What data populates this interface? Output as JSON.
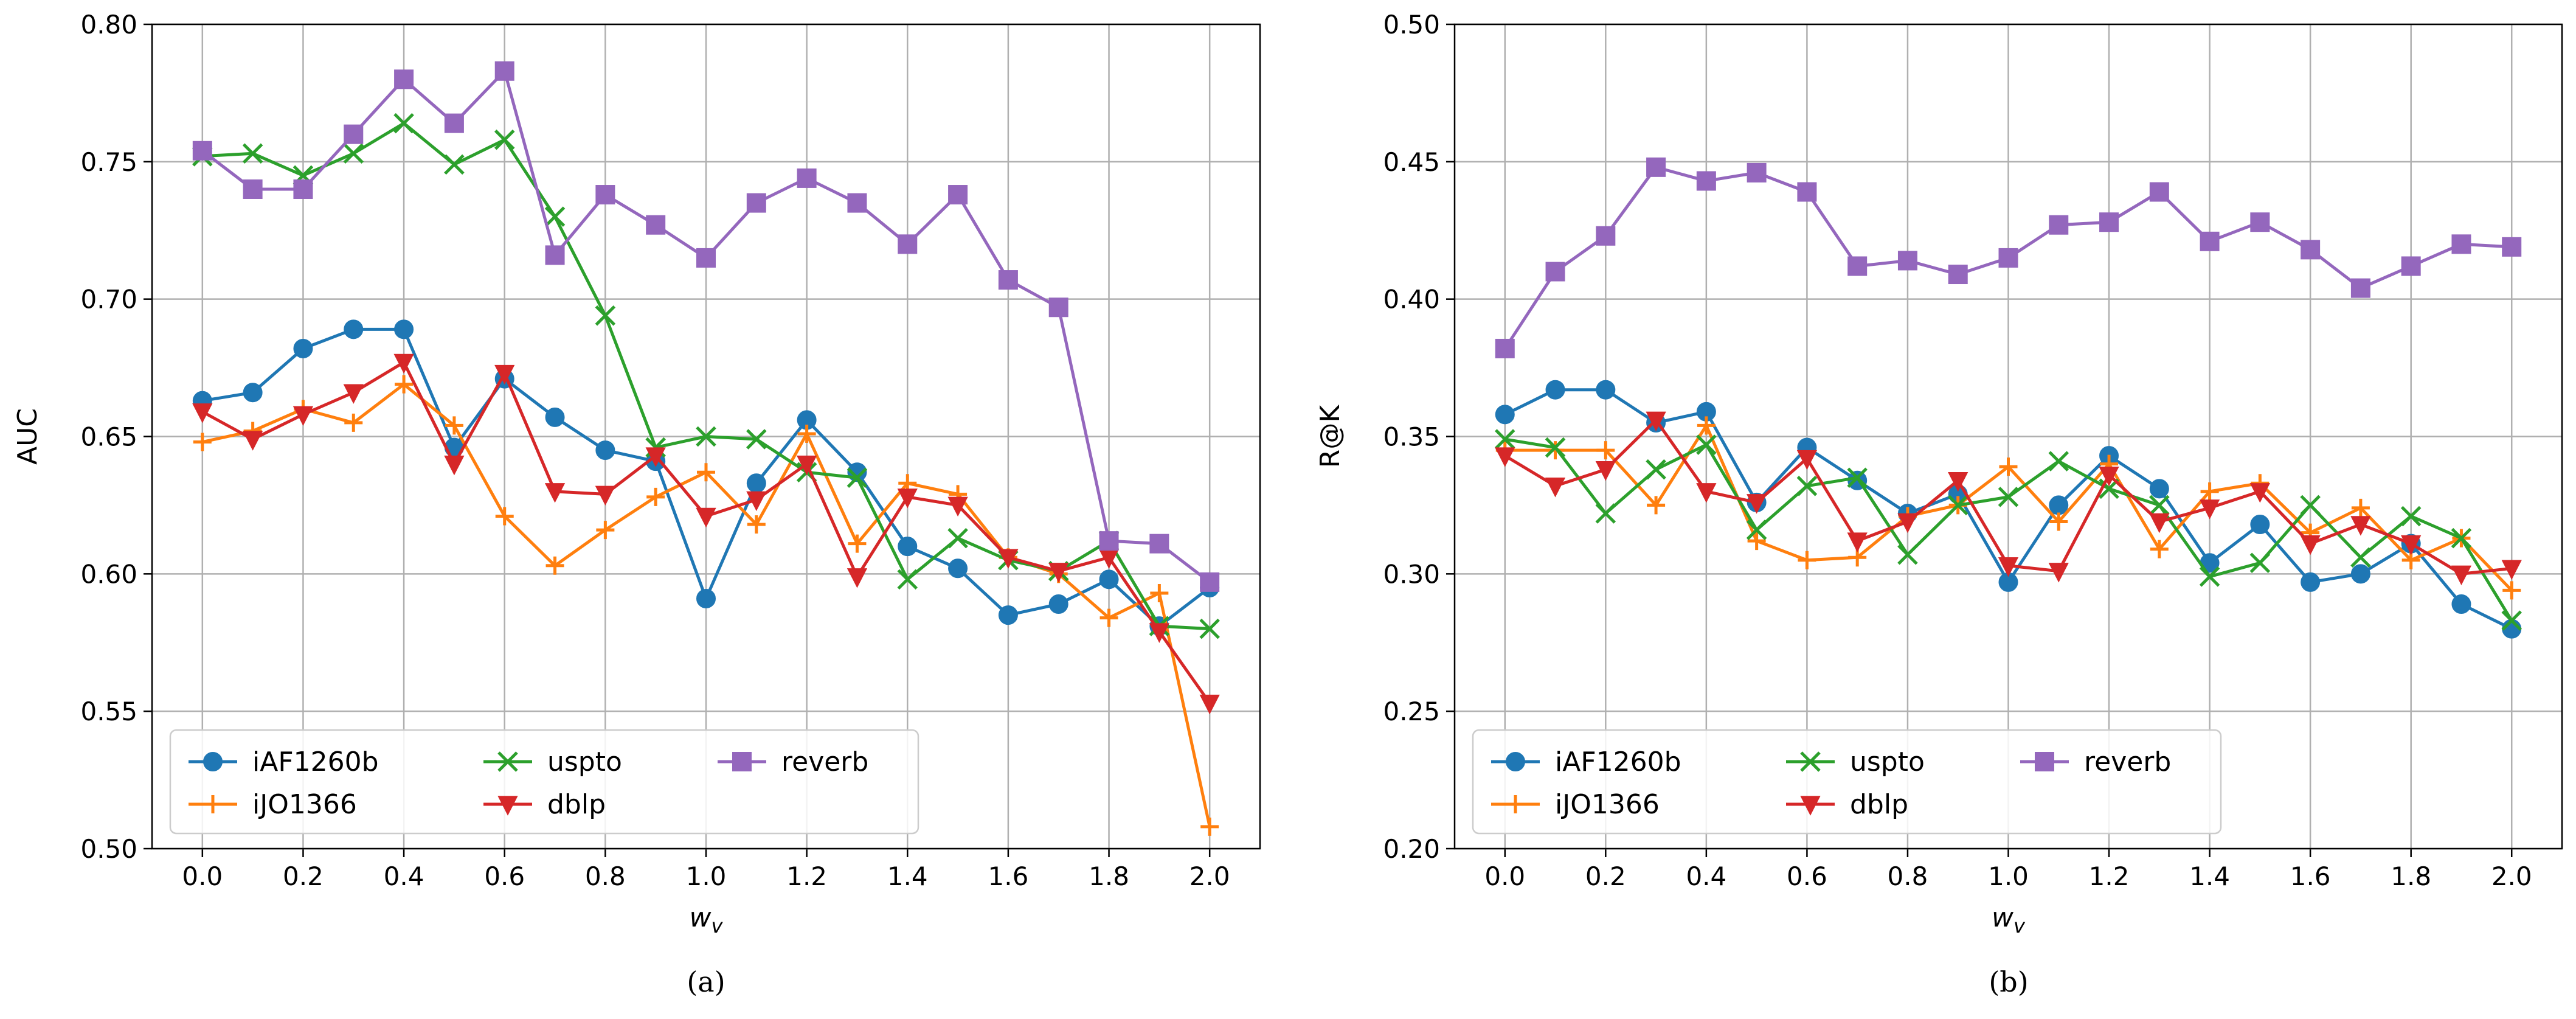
{
  "colors": {
    "iAF1260b": "#1f77b4",
    "iJO1366": "#ff7f0e",
    "uspto": "#2ca02c",
    "dblp": "#d62728",
    "reverb": "#9467bd"
  },
  "chart_data": [
    {
      "type": "line",
      "panel": "(a)",
      "xlabel": "w_v",
      "ylabel": "AUC",
      "xlim": [
        -0.1,
        2.1
      ],
      "ylim": [
        0.5,
        0.8
      ],
      "xticks": [
        0.0,
        0.2,
        0.4,
        0.6,
        0.8,
        1.0,
        1.2,
        1.4,
        1.6,
        1.8,
        2.0
      ],
      "xtick_labels": [
        "0.0",
        "0.2",
        "0.4",
        "0.6",
        "0.8",
        "1.0",
        "1.2",
        "1.4",
        "1.6",
        "1.8",
        "2.0"
      ],
      "yticks": [
        0.5,
        0.55,
        0.6,
        0.65,
        0.7,
        0.75,
        0.8
      ],
      "ytick_labels": [
        "0.50",
        "0.55",
        "0.60",
        "0.65",
        "0.70",
        "0.75",
        "0.80"
      ],
      "grid": true,
      "legend": "lower-left, 3 columns",
      "x": [
        0.0,
        0.1,
        0.2,
        0.3,
        0.4,
        0.5,
        0.6,
        0.7,
        0.8,
        0.9,
        1.0,
        1.1,
        1.2,
        1.3,
        1.4,
        1.5,
        1.6,
        1.7,
        1.8,
        1.9,
        2.0
      ],
      "series": [
        {
          "name": "iAF1260b",
          "marker": "circle",
          "values": [
            0.663,
            0.666,
            0.682,
            0.689,
            0.689,
            0.646,
            0.671,
            0.657,
            0.645,
            0.641,
            0.591,
            0.633,
            0.656,
            0.637,
            0.61,
            0.602,
            0.585,
            0.589,
            0.598,
            0.581,
            0.595
          ]
        },
        {
          "name": "iJO1366",
          "marker": "plus",
          "values": [
            0.648,
            0.652,
            0.66,
            0.655,
            0.669,
            0.654,
            0.621,
            0.603,
            0.616,
            0.628,
            0.637,
            0.618,
            0.651,
            0.611,
            0.633,
            0.629,
            0.606,
            0.6,
            0.584,
            0.593,
            0.508
          ]
        },
        {
          "name": "uspto",
          "marker": "x",
          "values": [
            0.752,
            0.753,
            0.745,
            0.753,
            0.764,
            0.749,
            0.758,
            0.73,
            0.694,
            0.646,
            0.65,
            0.649,
            0.637,
            0.635,
            0.598,
            0.613,
            0.605,
            0.601,
            0.612,
            0.581,
            0.58
          ]
        },
        {
          "name": "dblp",
          "marker": "triangle-down",
          "values": [
            0.659,
            0.649,
            0.658,
            0.666,
            0.677,
            0.64,
            0.673,
            0.63,
            0.629,
            0.643,
            0.621,
            0.627,
            0.64,
            0.599,
            0.628,
            0.625,
            0.606,
            0.601,
            0.606,
            0.579,
            0.553
          ]
        },
        {
          "name": "reverb",
          "marker": "square",
          "values": [
            0.754,
            0.74,
            0.74,
            0.76,
            0.78,
            0.764,
            0.783,
            0.716,
            0.738,
            0.727,
            0.715,
            0.735,
            0.744,
            0.735,
            0.72,
            0.738,
            0.707,
            0.697,
            0.612,
            0.611,
            0.597
          ]
        }
      ]
    },
    {
      "type": "line",
      "panel": "(b)",
      "xlabel": "w_v",
      "ylabel": "R@K",
      "xlim": [
        -0.1,
        2.1
      ],
      "ylim": [
        0.2,
        0.5
      ],
      "xticks": [
        0.0,
        0.2,
        0.4,
        0.6,
        0.8,
        1.0,
        1.2,
        1.4,
        1.6,
        1.8,
        2.0
      ],
      "xtick_labels": [
        "0.0",
        "0.2",
        "0.4",
        "0.6",
        "0.8",
        "1.0",
        "1.2",
        "1.4",
        "1.6",
        "1.8",
        "2.0"
      ],
      "yticks": [
        0.2,
        0.25,
        0.3,
        0.35,
        0.4,
        0.45,
        0.5
      ],
      "ytick_labels": [
        "0.20",
        "0.25",
        "0.30",
        "0.35",
        "0.40",
        "0.45",
        "0.50"
      ],
      "grid": true,
      "legend": "lower-left, 3 columns",
      "x": [
        0.0,
        0.1,
        0.2,
        0.3,
        0.4,
        0.5,
        0.6,
        0.7,
        0.8,
        0.9,
        1.0,
        1.1,
        1.2,
        1.3,
        1.4,
        1.5,
        1.6,
        1.7,
        1.8,
        1.9,
        2.0
      ],
      "series": [
        {
          "name": "iAF1260b",
          "marker": "circle",
          "values": [
            0.358,
            0.367,
            0.367,
            0.355,
            0.359,
            0.326,
            0.346,
            0.334,
            0.322,
            0.329,
            0.297,
            0.325,
            0.343,
            0.331,
            0.304,
            0.318,
            0.297,
            0.3,
            0.311,
            0.289,
            0.28
          ]
        },
        {
          "name": "iJO1366",
          "marker": "plus",
          "values": [
            0.345,
            0.345,
            0.345,
            0.325,
            0.354,
            0.312,
            0.305,
            0.306,
            0.321,
            0.325,
            0.339,
            0.319,
            0.34,
            0.309,
            0.33,
            0.333,
            0.315,
            0.324,
            0.305,
            0.313,
            0.294
          ]
        },
        {
          "name": "uspto",
          "marker": "x",
          "values": [
            0.349,
            0.346,
            0.322,
            0.338,
            0.347,
            0.316,
            0.332,
            0.335,
            0.307,
            0.325,
            0.328,
            0.341,
            0.331,
            0.325,
            0.299,
            0.304,
            0.325,
            0.306,
            0.321,
            0.313,
            0.283
          ]
        },
        {
          "name": "dblp",
          "marker": "triangle-down",
          "values": [
            0.343,
            0.332,
            0.338,
            0.356,
            0.33,
            0.326,
            0.342,
            0.312,
            0.319,
            0.334,
            0.303,
            0.301,
            0.336,
            0.319,
            0.324,
            0.33,
            0.311,
            0.318,
            0.311,
            0.3,
            0.302
          ]
        },
        {
          "name": "reverb",
          "marker": "square",
          "values": [
            0.382,
            0.41,
            0.423,
            0.448,
            0.443,
            0.446,
            0.439,
            0.412,
            0.414,
            0.409,
            0.415,
            0.427,
            0.428,
            0.439,
            0.421,
            0.428,
            0.418,
            0.404,
            0.412,
            0.42,
            0.419
          ]
        }
      ]
    }
  ]
}
